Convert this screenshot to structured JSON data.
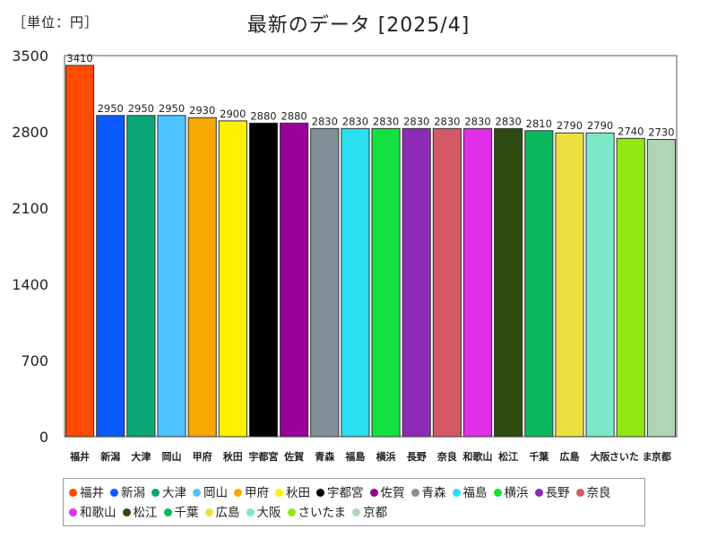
{
  "unit_label": "［単位：円］",
  "chart_data": {
    "type": "bar",
    "title": "最新のデータ [2025/4]",
    "xlabel": "",
    "ylabel": "",
    "ylim": [
      0,
      3500
    ],
    "yticks": [
      0,
      700,
      1400,
      2100,
      2800,
      3500
    ],
    "grid": false,
    "legend_position": "bottom",
    "categories": [
      "福井",
      "新潟",
      "大津",
      "岡山",
      "甲府",
      "秋田",
      "宇都宮",
      "佐賀",
      "青森",
      "福島",
      "横浜",
      "長野",
      "奈良",
      "和歌山",
      "松江",
      "千葉",
      "広島",
      "大阪",
      "さいたま",
      "京都"
    ],
    "tick_labels": [
      "福井",
      "新潟",
      "大津",
      "岡山",
      "甲府",
      "秋田",
      "宇都宮",
      "佐賀",
      "青森",
      "福島",
      "横浜",
      "長野",
      "奈良",
      "和歌山",
      "松江",
      "千葉",
      "広島",
      "大阪",
      "さいた ま",
      "京都"
    ],
    "values": [
      3410,
      2950,
      2950,
      2950,
      2930,
      2900,
      2880,
      2880,
      2830,
      2830,
      2830,
      2830,
      2830,
      2830,
      2830,
      2810,
      2790,
      2790,
      2740,
      2730
    ],
    "colors": [
      "#ff4a00",
      "#0a5bff",
      "#0aa675",
      "#4fc3ff",
      "#f7a800",
      "#fff000",
      "#000000",
      "#990099",
      "#808f98",
      "#28e0f0",
      "#12e040",
      "#8c2ab8",
      "#d45a66",
      "#e030e8",
      "#2d4a10",
      "#09b85c",
      "#ebe040",
      "#7de8c8",
      "#92e810",
      "#b0d4b4"
    ]
  }
}
